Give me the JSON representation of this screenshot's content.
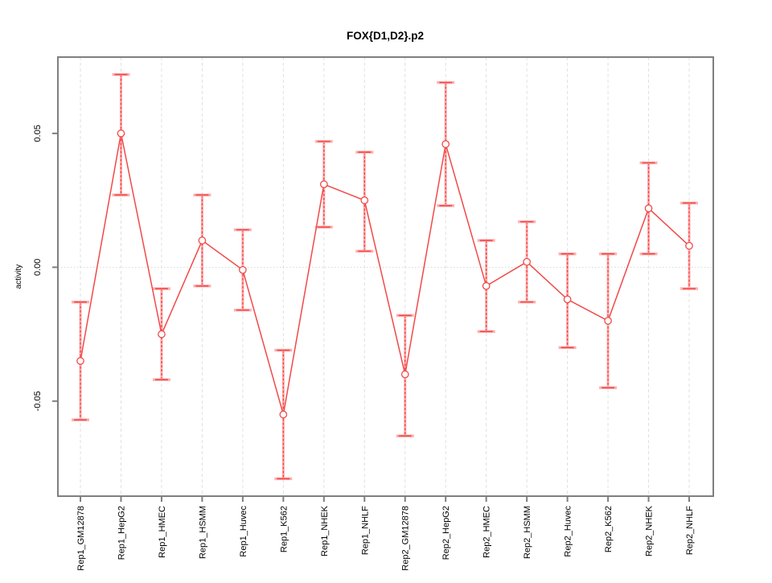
{
  "title": "FOX{D1,D2}.p2",
  "chart_data": {
    "type": "scatter",
    "title": "FOX{D1,D2}.p2",
    "xlabel": "",
    "ylabel": "activity",
    "categories": [
      "Rep1_GM12878",
      "Rep1_HepG2",
      "Rep1_HMEC",
      "Rep1_HSMM",
      "Rep1_Huvec",
      "Rep1_K562",
      "Rep1_NHEK",
      "Rep1_NHLF",
      "Rep2_GM12878",
      "Rep2_HepG2",
      "Rep2_HMEC",
      "Rep2_HSMM",
      "Rep2_Huvec",
      "Rep2_K562",
      "Rep2_NHEK",
      "Rep2_NHLF"
    ],
    "series": [
      {
        "name": "activity",
        "values": [
          -0.035,
          0.05,
          -0.025,
          0.01,
          -0.001,
          -0.055,
          0.031,
          0.025,
          -0.04,
          0.046,
          -0.007,
          0.002,
          -0.012,
          -0.02,
          0.022,
          0.008
        ],
        "upper": [
          -0.013,
          0.072,
          -0.008,
          0.027,
          0.014,
          -0.031,
          0.047,
          0.043,
          -0.018,
          0.069,
          0.01,
          0.017,
          0.005,
          0.005,
          0.039,
          0.024
        ],
        "lower": [
          -0.057,
          0.027,
          -0.042,
          -0.007,
          -0.016,
          -0.079,
          0.015,
          0.006,
          -0.063,
          0.023,
          -0.024,
          -0.013,
          -0.03,
          -0.045,
          0.005,
          -0.008
        ]
      }
    ],
    "ylim": [
      -0.0855,
      0.0785
    ],
    "yticks": [
      0.05,
      0.0,
      -0.05
    ],
    "ytick_labels": [
      "0.05",
      "0.00",
      "-0.05"
    ],
    "grid": "vertical dashed line at each category; dotted horizontal line at y=0",
    "legend": "none",
    "marker": "open-circle",
    "colors": {
      "line": "#f14949",
      "halo": "#ffb0b0",
      "box": "#7f7f7f",
      "grid_vertical": "#e0e0e0",
      "grid_zero": "#d8d8d8",
      "text": "#000000",
      "background": "#ffffff"
    }
  }
}
